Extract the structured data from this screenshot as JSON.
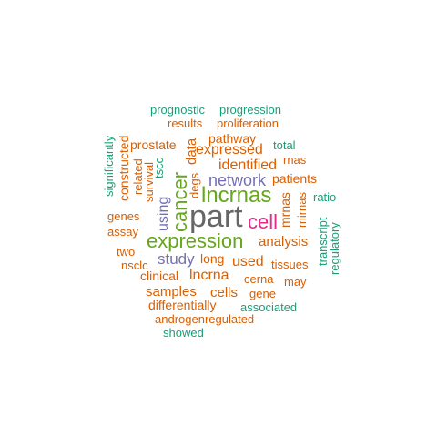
{
  "colors": {
    "green": "#1b9e77",
    "orange": "#d95f02",
    "purple": "#7570b3",
    "pink": "#e7298a",
    "lime": "#66a61e",
    "gray": "#666666"
  },
  "words": [
    "prognostic",
    "progression",
    "results",
    "proliferation",
    "pathway",
    "total",
    "prostate",
    "expressed",
    "rnas",
    "identified",
    "patients",
    "network",
    "lncrnas",
    "ratio",
    "genes",
    "part",
    "cell",
    "assay",
    "expression",
    "analysis",
    "two",
    "study",
    "long",
    "used",
    "tissues",
    "nsclc",
    "clinical",
    "lncrna",
    "cerna",
    "may",
    "samples",
    "cells",
    "gene",
    "differentially",
    "associated",
    "androgenregulated",
    "showed",
    "significantly",
    "constructed",
    "related",
    "survival",
    "tscc",
    "using",
    "cancer",
    "data",
    "degs",
    "mrnas",
    "mirnas",
    "transcript",
    "regulatory"
  ]
}
